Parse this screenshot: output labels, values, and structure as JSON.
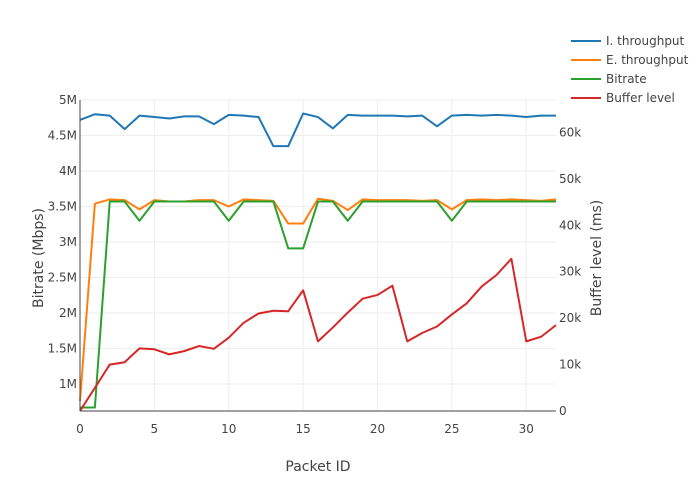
{
  "chart_data": {
    "type": "line",
    "xlabel": "Packet ID",
    "ylabel": "Bitrate (Mbps)",
    "y2label": "Buffer level (ms)",
    "xlim": [
      0,
      32
    ],
    "ylim": [
      620000,
      5000000
    ],
    "y2lim": [
      0,
      67000
    ],
    "x_ticks": [
      0,
      5,
      10,
      15,
      20,
      25,
      30
    ],
    "y_ticks": [
      {
        "value": 1000000,
        "label": "1M"
      },
      {
        "value": 1500000,
        "label": "1.5M"
      },
      {
        "value": 2000000,
        "label": "2M"
      },
      {
        "value": 2500000,
        "label": "2.5M"
      },
      {
        "value": 3000000,
        "label": "3M"
      },
      {
        "value": 3500000,
        "label": "3.5M"
      },
      {
        "value": 4000000,
        "label": "4M"
      },
      {
        "value": 4500000,
        "label": "4.5M"
      },
      {
        "value": 5000000,
        "label": "5M"
      }
    ],
    "y2_ticks": [
      {
        "value": 0,
        "label": "0"
      },
      {
        "value": 10000,
        "label": "10k"
      },
      {
        "value": 20000,
        "label": "20k"
      },
      {
        "value": 30000,
        "label": "30k"
      },
      {
        "value": 40000,
        "label": "40k"
      },
      {
        "value": 50000,
        "label": "50k"
      },
      {
        "value": 60000,
        "label": "60k"
      }
    ],
    "legend_position": "top-right",
    "x": [
      0,
      1,
      2,
      3,
      4,
      5,
      6,
      7,
      8,
      9,
      10,
      11,
      12,
      13,
      14,
      15,
      16,
      17,
      18,
      19,
      20,
      21,
      22,
      23,
      24,
      25,
      26,
      27,
      28,
      29,
      30,
      31,
      32
    ],
    "series": [
      {
        "name": "I. throughput",
        "color": "#1f77b4",
        "axis": "y",
        "values": [
          4720000,
          4800000,
          4780000,
          4590000,
          4780000,
          4760000,
          4740000,
          4770000,
          4770000,
          4660000,
          4790000,
          4780000,
          4760000,
          4350000,
          4350000,
          4810000,
          4760000,
          4600000,
          4790000,
          4780000,
          4780000,
          4780000,
          4770000,
          4780000,
          4630000,
          4780000,
          4790000,
          4780000,
          4790000,
          4780000,
          4760000,
          4780000,
          4780000
        ]
      },
      {
        "name": "E. throughput",
        "color": "#ff7f0e",
        "axis": "y",
        "values": [
          760000,
          3540000,
          3600000,
          3590000,
          3460000,
          3590000,
          3570000,
          3570000,
          3590000,
          3590000,
          3500000,
          3600000,
          3590000,
          3580000,
          3260000,
          3260000,
          3610000,
          3580000,
          3450000,
          3600000,
          3590000,
          3590000,
          3590000,
          3580000,
          3590000,
          3460000,
          3590000,
          3600000,
          3590000,
          3600000,
          3590000,
          3580000,
          3600000
        ]
      },
      {
        "name": "Bitrate",
        "color": "#2ca02c",
        "axis": "y",
        "values": [
          670000,
          670000,
          3570000,
          3570000,
          3300000,
          3570000,
          3570000,
          3570000,
          3570000,
          3570000,
          3300000,
          3570000,
          3570000,
          3570000,
          2910000,
          2910000,
          3570000,
          3570000,
          3300000,
          3570000,
          3570000,
          3570000,
          3570000,
          3570000,
          3570000,
          3300000,
          3570000,
          3570000,
          3570000,
          3570000,
          3570000,
          3570000,
          3570000
        ]
      },
      {
        "name": "Buffer level",
        "color": "#d62728",
        "axis": "y2",
        "values": [
          0,
          5000,
          10000,
          10500,
          13500,
          13300,
          12200,
          12900,
          14000,
          13400,
          15800,
          19000,
          21000,
          21600,
          21500,
          26000,
          15000,
          18000,
          21200,
          24200,
          25000,
          27000,
          15000,
          16800,
          18200,
          20800,
          23200,
          26800,
          29300,
          32800,
          15000,
          16000,
          18500
        ]
      }
    ]
  }
}
